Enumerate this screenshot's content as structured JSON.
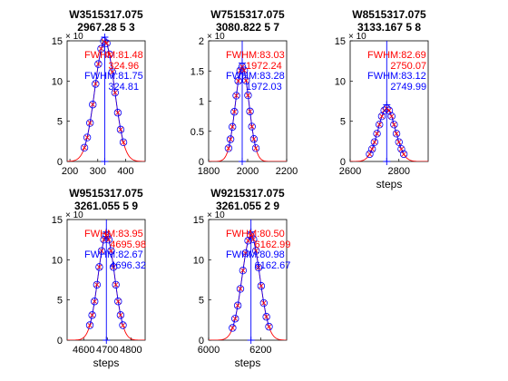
{
  "colors": {
    "axis": "#000000",
    "red": "#ff0000",
    "blue": "#0000ff",
    "marker": "#0000ff",
    "dark": "#000000"
  },
  "chart_data": [
    {
      "type": "line",
      "title_lines": [
        "W3515317.075",
        "2967.28 5 3"
      ],
      "xlabel": "",
      "xlim": [
        190,
        470
      ],
      "ylim": [
        0,
        15
      ],
      "xticks": [
        200,
        300,
        400
      ],
      "yticks": [
        0,
        5,
        10,
        15
      ],
      "yexp": "× 10",
      "center": 324.9,
      "peak": 15.0,
      "sigma": 35.0,
      "points_x": [
        252,
        262,
        272,
        282,
        292,
        302,
        312,
        322,
        332,
        342,
        352,
        362,
        372,
        382,
        392
      ],
      "fwhm_red_label": "FWHM:81.48",
      "peak_red_label": "324.96",
      "fwhm_blue_label": "FWHM:81.75",
      "peak_blue_label": "324.81"
    },
    {
      "type": "line",
      "title_lines": [
        "W7515317.075",
        "3080.822 5 7"
      ],
      "xlabel": "",
      "xlim": [
        1800,
        2200
      ],
      "ylim": [
        0,
        2
      ],
      "xticks": [
        1800,
        2000,
        2200
      ],
      "yticks": [
        0,
        0.5,
        1,
        1.5,
        2
      ],
      "yexp": "× 10",
      "center": 1972.1,
      "peak": 1.57,
      "sigma": 35.3,
      "points_x": [
        1902,
        1912,
        1922,
        1932,
        1942,
        1952,
        1962,
        1972,
        1982,
        1992,
        2002,
        2012,
        2022,
        2032,
        2042
      ],
      "fwhm_red_label": "FWHM:83.03",
      "peak_red_label": "1972.24",
      "fwhm_blue_label": "FWHM:83.28",
      "peak_blue_label": "1972.03"
    },
    {
      "type": "line",
      "title_lines": [
        "W8515317.075",
        "3133.167 5 8"
      ],
      "xlabel": "steps",
      "xlim": [
        2600,
        2920
      ],
      "ylim": [
        0,
        15
      ],
      "xticks": [
        2600,
        2800
      ],
      "yticks": [
        0,
        5,
        10,
        15
      ],
      "yexp": "× 10",
      "center": 2750.0,
      "peak": 6.6,
      "sigma": 35.2,
      "points_x": [
        2680,
        2690,
        2700,
        2710,
        2720,
        2730,
        2740,
        2750,
        2760,
        2770,
        2780,
        2790,
        2800,
        2810,
        2820
      ],
      "fwhm_red_label": "FWHM:82.69",
      "peak_red_label": "2750.07",
      "fwhm_blue_label": "FWHM:83.12",
      "peak_blue_label": "2749.99"
    },
    {
      "type": "line",
      "title_lines": [
        "W9515317.075",
        "3261.055 5 9"
      ],
      "xlabel": "steps",
      "xlim": [
        4530,
        4860
      ],
      "ylim": [
        0,
        15
      ],
      "xticks": [
        4600,
        4700,
        4800
      ],
      "yticks": [
        0,
        5,
        10,
        15
      ],
      "yexp": "× 10",
      "center": 4696.0,
      "peak": 13.0,
      "sigma": 35.5,
      "points_x": [
        4626,
        4636,
        4646,
        4656,
        4666,
        4676,
        4686,
        4696,
        4706,
        4716,
        4726,
        4736,
        4746,
        4756,
        4766
      ],
      "fwhm_red_label": "FWHM:83.95",
      "peak_red_label": "4695.98",
      "fwhm_blue_label": "FWHM:82.67",
      "peak_blue_label": "4696.32",
      "offset_grid": true
    },
    {
      "type": "line",
      "title_lines": [
        "W9215317.075",
        "3261.055 2 9"
      ],
      "xlabel": "steps",
      "xlim": [
        6000,
        6300
      ],
      "ylim": [
        0,
        15
      ],
      "xticks": [
        6000,
        6200
      ],
      "yticks": [
        0,
        5,
        10,
        15
      ],
      "yexp": "× 10",
      "center": 6162.8,
      "peak": 13.0,
      "sigma": 34.2,
      "points_x": [
        6092,
        6102,
        6112,
        6122,
        6132,
        6142,
        6152,
        6162,
        6172,
        6182,
        6192,
        6202,
        6212,
        6222,
        6232
      ],
      "fwhm_red_label": "FWHM:80.50",
      "peak_red_label": "6162.99",
      "fwhm_blue_label": "FWHM:80.98",
      "peak_blue_label": "6162.67"
    }
  ]
}
